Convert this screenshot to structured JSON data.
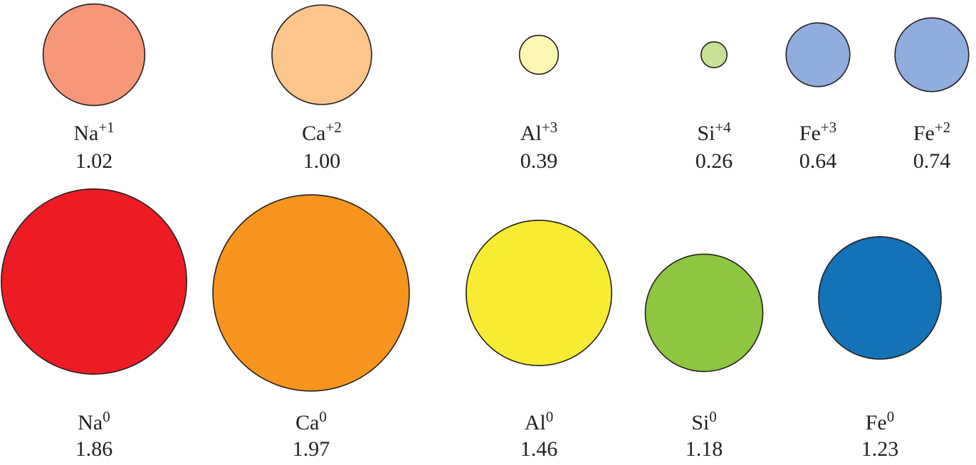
{
  "ions": [
    {
      "symbol": "Na",
      "charge": "+1",
      "radius": "1.02",
      "color": "#f79679"
    },
    {
      "symbol": "Ca",
      "charge": "+2",
      "radius": "1.00",
      "color": "#fdc58c"
    },
    {
      "symbol": "Al",
      "charge": "+3",
      "radius": "0.39",
      "color": "#fcf8b3"
    },
    {
      "symbol": "Si",
      "charge": "+4",
      "radius": "0.26",
      "color": "#c6e196"
    },
    {
      "symbol": "Fe",
      "charge": "+3",
      "radius": "0.64",
      "color": "#8faedd"
    },
    {
      "symbol": "Fe",
      "charge": "+2",
      "radius": "0.74",
      "color": "#8faedd"
    }
  ],
  "atoms": [
    {
      "symbol": "Na",
      "charge": "0",
      "radius": "1.86",
      "color": "#ed1c24"
    },
    {
      "symbol": "Ca",
      "charge": "0",
      "radius": "1.97",
      "color": "#f7941d"
    },
    {
      "symbol": "Al",
      "charge": "0",
      "radius": "1.46",
      "color": "#f7ec31"
    },
    {
      "symbol": "Si",
      "charge": "0",
      "radius": "1.18",
      "color": "#8dc63f"
    },
    {
      "symbol": "Fe",
      "charge": "0",
      "radius": "1.23",
      "color": "#1372b8"
    }
  ]
}
